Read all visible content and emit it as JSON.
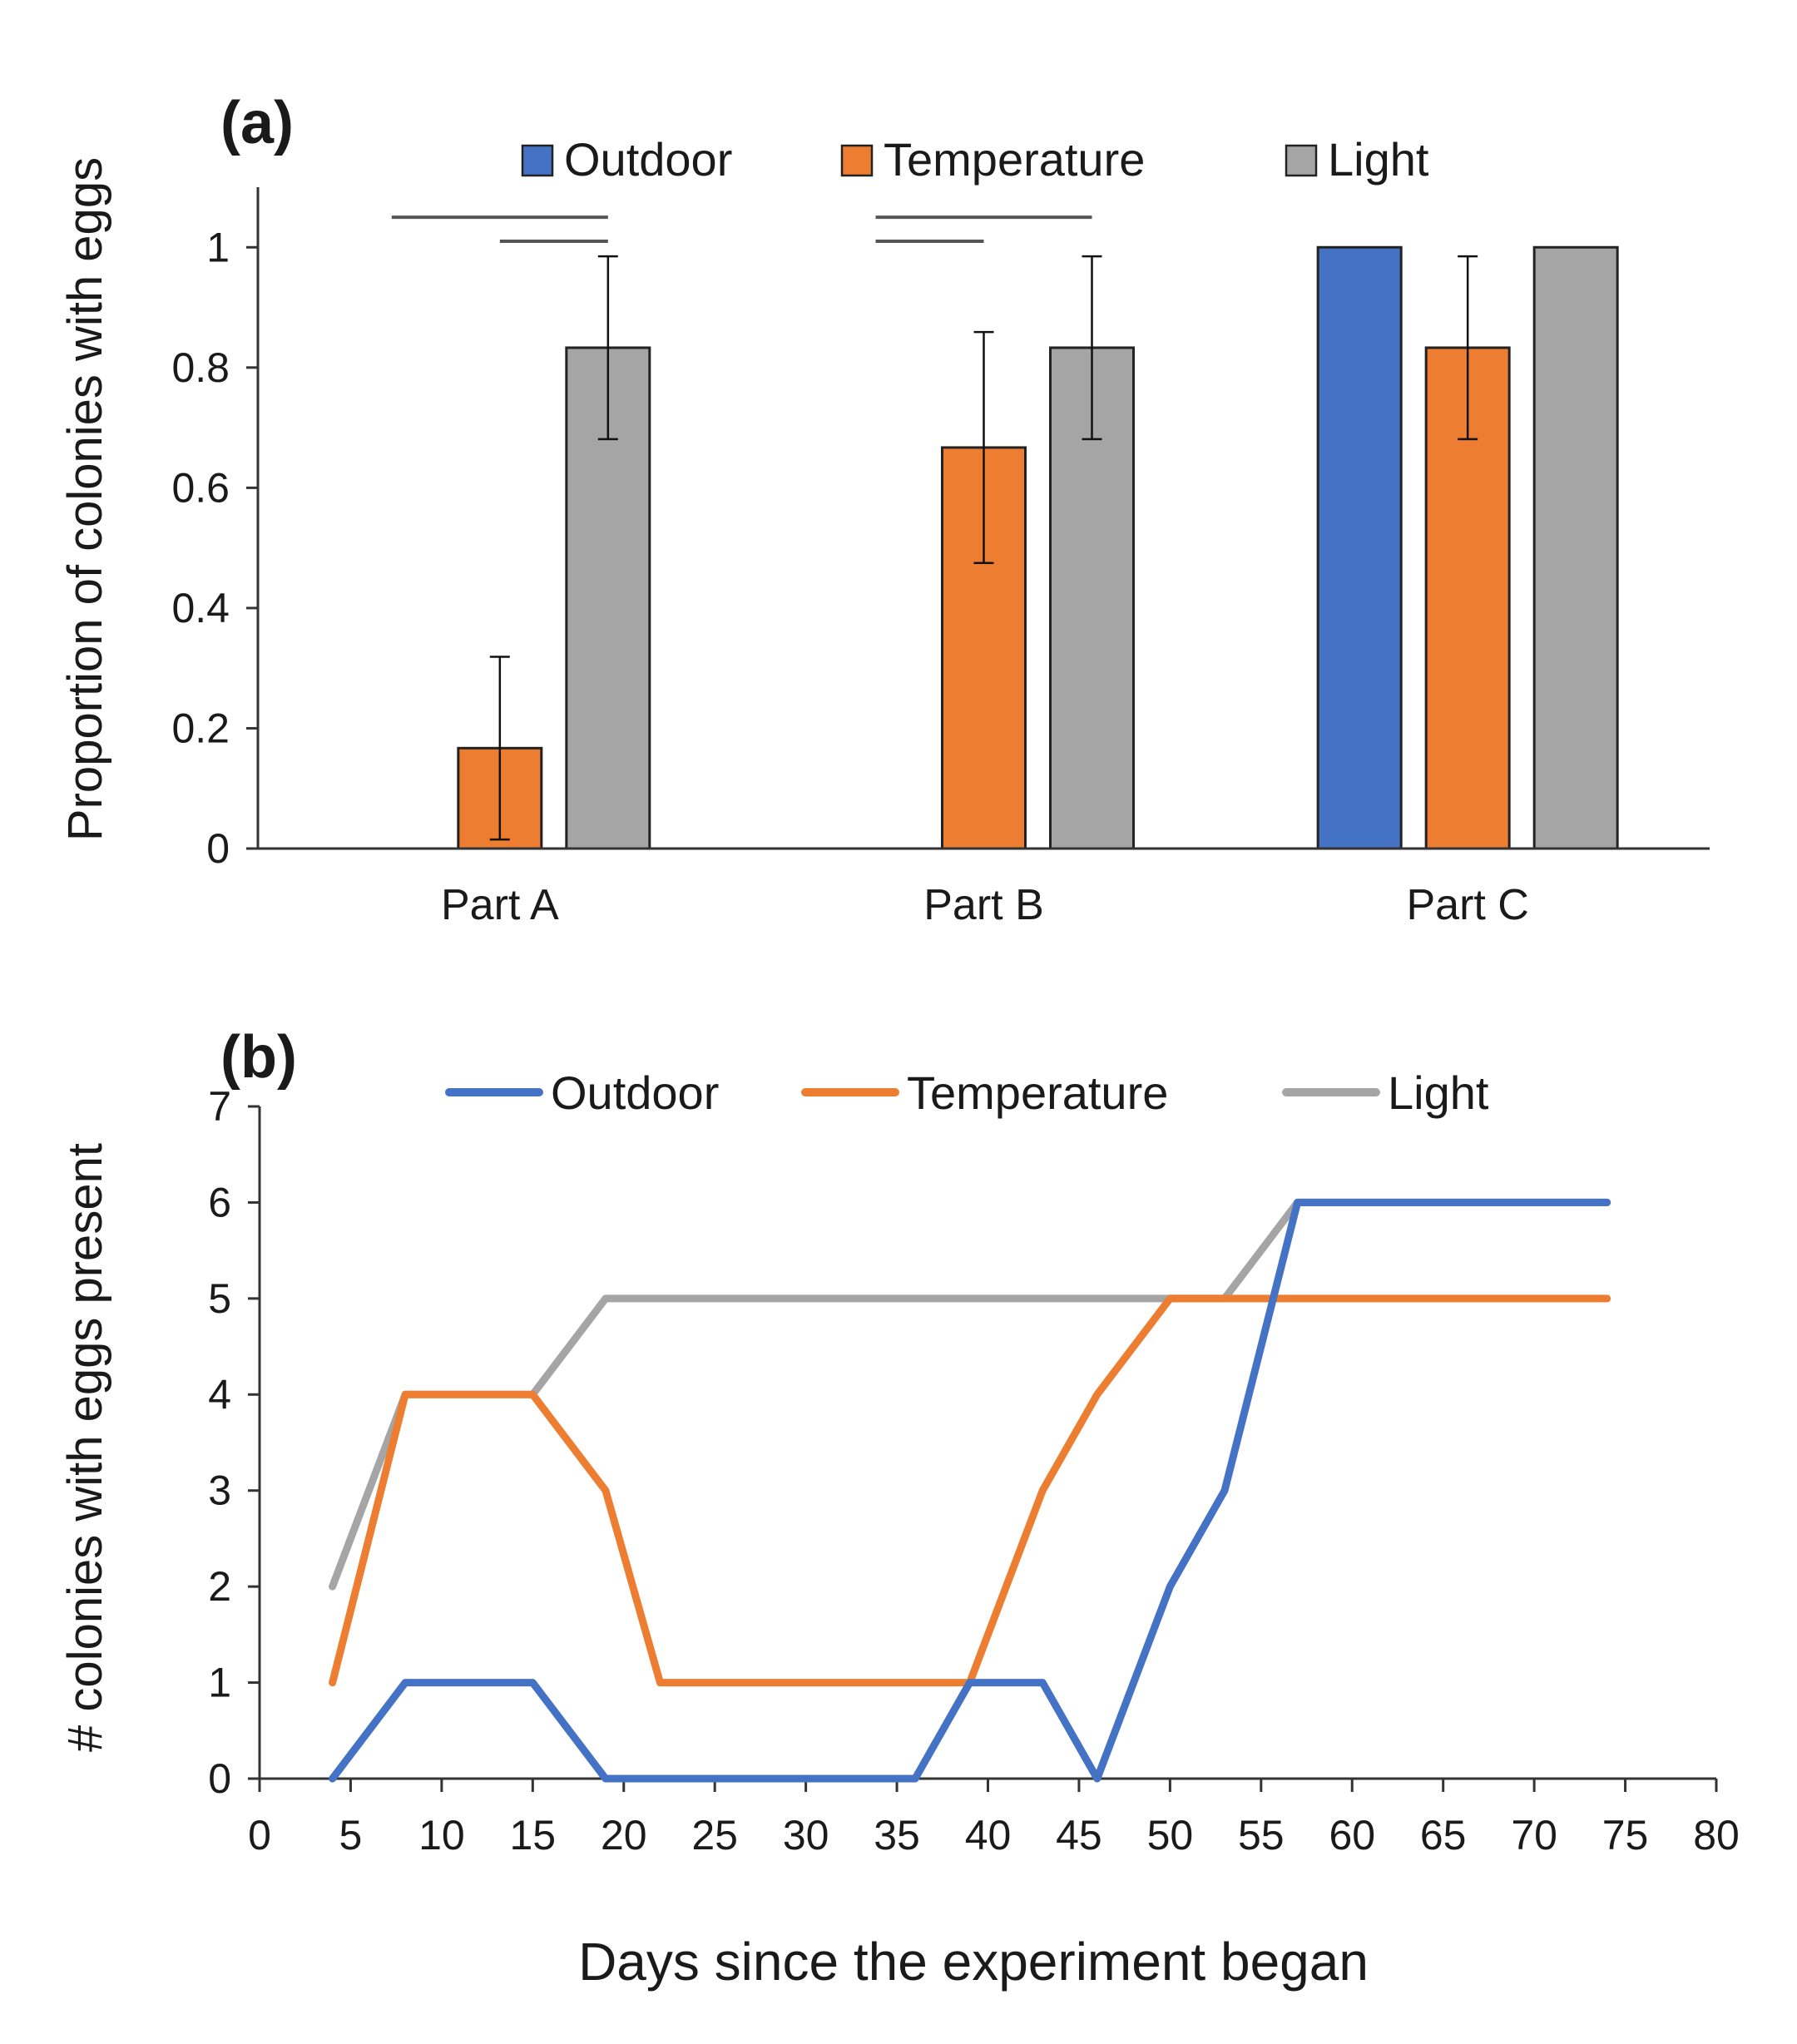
{
  "chart_data": [
    {
      "type": "bar",
      "panel_label": "(a)",
      "ylabel": "Proportion of colonies with eggs",
      "xlabel": "",
      "categories": [
        "Part A",
        "Part B",
        "Part C"
      ],
      "ylim": [
        0,
        1.1
      ],
      "yticks": [
        "0",
        "0.2",
        "0.4",
        "0.6",
        "0.8",
        "1"
      ],
      "ytick_values": [
        0,
        0.2,
        0.4,
        0.6,
        0.8,
        1
      ],
      "legend": [
        "Outdoor",
        "Temperature",
        "Light"
      ],
      "legend_placement": "top",
      "series": [
        {
          "name": "Outdoor",
          "color": "#4472C4",
          "values": [
            null,
            null,
            1.0
          ],
          "errors": [
            null,
            null,
            null
          ]
        },
        {
          "name": "Temperature",
          "color": "#ED7D31",
          "values": [
            0.167,
            0.667,
            0.833
          ],
          "errors": [
            0.152,
            0.192,
            0.152
          ]
        },
        {
          "name": "Light",
          "color": "#A5A5A5",
          "values": [
            0.833,
            0.833,
            1.0
          ],
          "errors": [
            0.152,
            0.152,
            null
          ]
        }
      ],
      "significance_brackets": [
        {
          "category": "Part A",
          "from_series": "Outdoor",
          "to_series": "Light",
          "level": 1.05
        },
        {
          "category": "Part A",
          "from_series": "Temperature",
          "to_series": "Light",
          "level": 1.01
        },
        {
          "category": "Part B",
          "from_series": "Outdoor",
          "to_series": "Light",
          "level": 1.05
        },
        {
          "category": "Part B",
          "from_series": "Outdoor",
          "to_series": "Temperature",
          "level": 1.01
        }
      ]
    },
    {
      "type": "line",
      "panel_label": "(b)",
      "ylabel": "# colonies with eggs present",
      "xlabel": "Days since the experiment began",
      "xlim": [
        0,
        80
      ],
      "ylim": [
        0,
        7
      ],
      "xticks": [
        "0",
        "5",
        "10",
        "15",
        "20",
        "25",
        "30",
        "35",
        "40",
        "45",
        "50",
        "55",
        "60",
        "65",
        "70",
        "75",
        "80"
      ],
      "xtick_values": [
        0,
        5,
        10,
        15,
        20,
        25,
        30,
        35,
        40,
        45,
        50,
        55,
        60,
        65,
        70,
        75,
        80
      ],
      "yticks": [
        "0",
        "1",
        "2",
        "3",
        "4",
        "5",
        "6",
        "7"
      ],
      "ytick_values": [
        0,
        1,
        2,
        3,
        4,
        5,
        6,
        7
      ],
      "legend": [
        "Outdoor",
        "Temperature",
        "Light"
      ],
      "legend_placement": "top",
      "series": [
        {
          "name": "Outdoor",
          "color": "#4472C4",
          "x": [
            4,
            8,
            11,
            15,
            19,
            22,
            25,
            29,
            32,
            36,
            39,
            43,
            46,
            50,
            53,
            57,
            60,
            64,
            67,
            71,
            74
          ],
          "values": [
            0,
            1,
            1,
            1,
            0,
            0,
            0,
            0,
            0,
            0,
            1,
            1,
            0,
            2,
            3,
            6,
            6,
            6,
            6,
            6,
            6
          ]
        },
        {
          "name": "Temperature",
          "color": "#ED7D31",
          "x": [
            4,
            8,
            11,
            15,
            19,
            22,
            25,
            29,
            32,
            36,
            39,
            43,
            46,
            50,
            53,
            57,
            60,
            64,
            67,
            71,
            74
          ],
          "values": [
            1,
            4,
            4,
            4,
            3,
            1,
            1,
            1,
            1,
            1,
            1,
            3,
            4,
            5,
            5,
            5,
            5,
            5,
            5,
            5,
            5
          ]
        },
        {
          "name": "Light",
          "color": "#A5A5A5",
          "x": [
            4,
            8,
            11,
            15,
            19,
            22,
            25,
            29,
            32,
            36,
            39,
            43,
            46,
            50,
            53,
            57,
            60,
            64,
            67,
            71,
            74
          ],
          "values": [
            2,
            4,
            4,
            4,
            5,
            5,
            5,
            5,
            5,
            5,
            5,
            5,
            5,
            5,
            5,
            6,
            6,
            6,
            6,
            6,
            6
          ]
        }
      ]
    }
  ]
}
